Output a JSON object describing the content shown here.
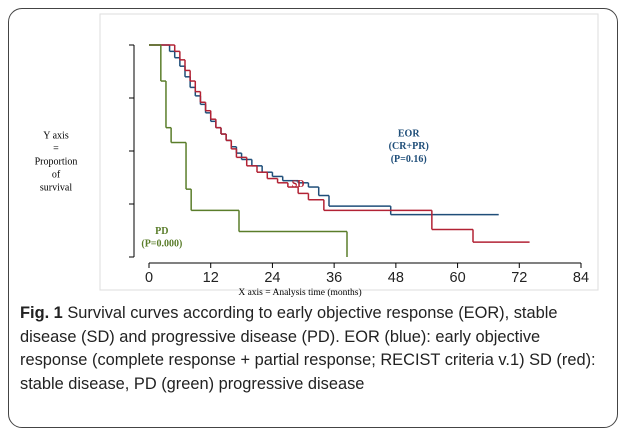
{
  "chart_data": {
    "type": "step",
    "ylabel": [
      "Y axis",
      "=",
      "Proportion",
      "of",
      "survival"
    ],
    "xlabel": "X axis  = Analysis time (months)",
    "xlim": [
      0,
      84
    ],
    "xticks": [
      0,
      12,
      24,
      36,
      48,
      60,
      72,
      84
    ],
    "ylim": [
      0,
      1
    ],
    "yticks": [
      0,
      0.25,
      0.5,
      0.75,
      1
    ],
    "series": [
      {
        "color": "#1f4e79",
        "x": [
          0,
          4,
          5,
          6,
          7,
          8,
          9,
          10,
          11,
          12,
          13,
          14,
          15,
          16,
          17,
          18,
          20,
          22,
          24,
          26,
          29,
          31,
          33,
          35,
          47,
          68
        ],
        "values": [
          1,
          0.97,
          0.94,
          0.9,
          0.85,
          0.8,
          0.76,
          0.72,
          0.68,
          0.64,
          0.61,
          0.58,
          0.55,
          0.52,
          0.49,
          0.46,
          0.43,
          0.4,
          0.38,
          0.36,
          0.35,
          0.33,
          0.29,
          0.24,
          0.2,
          0.2
        ]
      },
      {
        "color": "#b22234",
        "x": [
          0,
          5,
          6,
          7,
          8,
          9,
          10,
          11,
          12,
          13,
          14,
          15,
          16,
          17,
          19,
          21,
          23,
          25,
          27,
          29,
          31,
          34,
          55,
          63,
          74
        ],
        "values": [
          1,
          0.97,
          0.93,
          0.88,
          0.83,
          0.78,
          0.73,
          0.69,
          0.65,
          0.61,
          0.58,
          0.55,
          0.51,
          0.47,
          0.43,
          0.4,
          0.37,
          0.35,
          0.33,
          0.3,
          0.27,
          0.22,
          0.13,
          0.07,
          0.07
        ]
      },
      {
        "color": "#5a7d2a",
        "x": [
          0,
          2.3,
          3.3,
          4.3,
          7.2,
          8.2,
          17.5,
          38.5
        ],
        "values": [
          1,
          0.83,
          0.61,
          0.54,
          0.32,
          0.22,
          0.12,
          0
        ]
      }
    ],
    "annotations": [
      {
        "text": "EOR",
        "x": 50.5,
        "y": 0.58,
        "color": "#1f4e79"
      },
      {
        "text": "(CR+PR)",
        "x": 50.5,
        "y": 0.52,
        "color": "#1f4e79"
      },
      {
        "text": "(P=0.16)",
        "x": 50.5,
        "y": 0.46,
        "color": "#1f4e79"
      },
      {
        "text": "SD",
        "x": 29,
        "y": 0.34,
        "color": "#b22234"
      },
      {
        "text": "PD",
        "x": 2.5,
        "y": 0.12,
        "color": "#5a7d2a"
      },
      {
        "text": "(P=0.000)",
        "x": 2.5,
        "y": 0.06,
        "color": "#5a7d2a"
      }
    ]
  },
  "caption": {
    "label": "Fig. 1",
    "text": " Survival curves according to early objective response (EOR), stable disease (SD) and progressive disease (PD). EOR (blue): early objective response (complete response + partial response; RECIST criteria v.1) SD (red): stable disease, PD (green) progressive disease"
  }
}
